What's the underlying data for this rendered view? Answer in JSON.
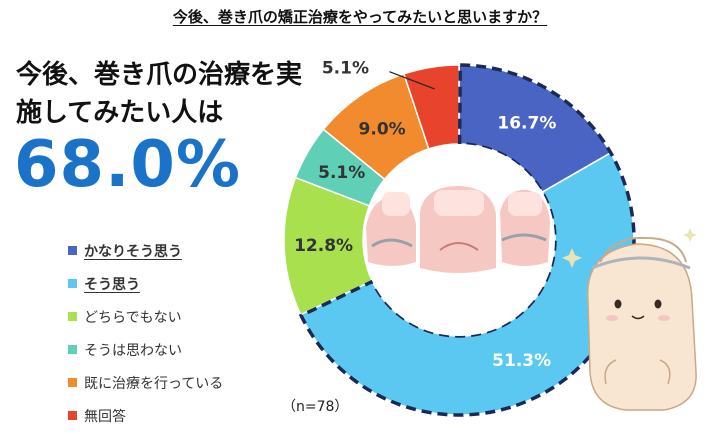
{
  "question_title": "今後、巻き爪の矯正治療をやってみたいと思いますか？",
  "headline": "今後、巻き爪の治療を実施してみたい人は",
  "headline_value": "68.0%",
  "sample_size": "（n=78）",
  "colors": {
    "accent": "#1a73c9",
    "dashed_outline": "#1a2a57"
  },
  "chart_data": {
    "type": "pie",
    "donut": true,
    "start_angle_deg": 0,
    "direction": "clockwise",
    "categories": [
      "かなりそう思う",
      "そう思う",
      "どちらでもない",
      "そうは思わない",
      "既に治療を行っている",
      "無回答"
    ],
    "values": [
      16.7,
      51.3,
      12.8,
      5.1,
      9.0,
      5.1
    ],
    "labels": [
      "16.7%",
      "51.3%",
      "12.8%",
      "5.1%",
      "9.0%",
      "5.1%"
    ],
    "colors": [
      "#4a64c4",
      "#5bc8f2",
      "#a8e04e",
      "#5fcfb6",
      "#f28a2e",
      "#e8432c"
    ],
    "label_colors": [
      "#ffffff",
      "#ffffff",
      "#333333",
      "#333333",
      "#333333",
      "#333333"
    ],
    "emphasized_slices": [
      0,
      1
    ],
    "legend": [
      "かなりそう思う",
      "そう思う",
      "どちらでもない",
      "そうは思わない",
      "既に治療を行っている",
      "無回答"
    ],
    "legend_emphasized": [
      0,
      1
    ],
    "legend_placement": "left"
  }
}
